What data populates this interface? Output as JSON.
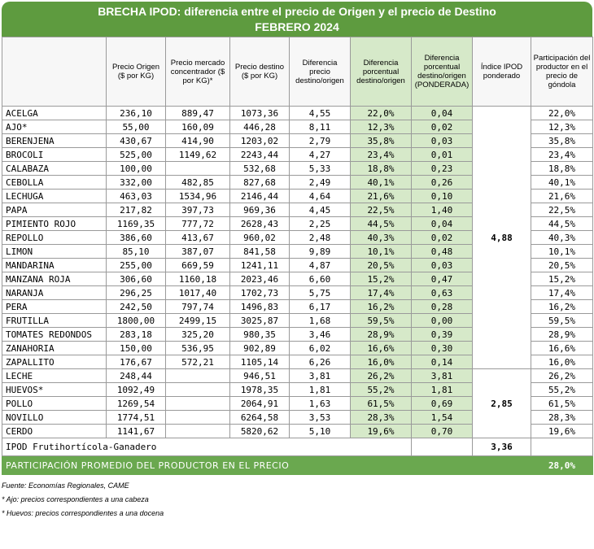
{
  "title": "BRECHA IPOD: diferencia entre el precio de Origen y el precio de Destino",
  "subtitle": "FEBRERO 2024",
  "table": {
    "headers": [
      "Precio Origen ($ por KG)",
      "Precio mercado concentrador ($ por KG)*",
      "Precio destino ($ por KG)",
      "Diferencia precio destino/origen",
      "Diferencia porcentual destino/origen",
      "Diferencia porcentual destino/origen (PONDERADA)",
      "Índice IPOD ponderado",
      "Participación del productor en el precio de góndola"
    ],
    "groups": [
      {
        "ipod": "4,88",
        "rows": [
          [
            "ACELGA",
            "236,10",
            "889,47",
            "1073,36",
            "4,55",
            "22,0%",
            "0,04",
            "22,0%"
          ],
          [
            "AJO*",
            "55,00",
            "160,09",
            "446,28",
            "8,11",
            "12,3%",
            "0,02",
            "12,3%"
          ],
          [
            "BERENJENA",
            "430,67",
            "414,90",
            "1203,02",
            "2,79",
            "35,8%",
            "0,03",
            "35,8%"
          ],
          [
            "BROCOLI",
            "525,00",
            "1149,62",
            "2243,44",
            "4,27",
            "23,4%",
            "0,01",
            "23,4%"
          ],
          [
            "CALABAZA",
            "100,00",
            null,
            "532,68",
            "5,33",
            "18,8%",
            "0,23",
            "18,8%"
          ],
          [
            "CEBOLLA",
            "332,00",
            "482,85",
            "827,68",
            "2,49",
            "40,1%",
            "0,26",
            "40,1%"
          ],
          [
            "LECHUGA",
            "463,03",
            "1534,96",
            "2146,44",
            "4,64",
            "21,6%",
            "0,10",
            "21,6%"
          ],
          [
            "PAPA",
            "217,82",
            "397,73",
            "969,36",
            "4,45",
            "22,5%",
            "1,40",
            "22,5%"
          ],
          [
            "PIMIENTO ROJO",
            "1169,35",
            "777,72",
            "2628,43",
            "2,25",
            "44,5%",
            "0,04",
            "44,5%"
          ],
          [
            "REPOLLO",
            "386,60",
            "413,67",
            "960,02",
            "2,48",
            "40,3%",
            "0,02",
            "40,3%"
          ],
          [
            "LIMON",
            "85,10",
            "387,07",
            "841,58",
            "9,89",
            "10,1%",
            "0,48",
            "10,1%"
          ],
          [
            "MANDARINA",
            "255,00",
            "669,59",
            "1241,11",
            "4,87",
            "20,5%",
            "0,03",
            "20,5%"
          ],
          [
            "MANZANA ROJA",
            "306,60",
            "1160,18",
            "2023,46",
            "6,60",
            "15,2%",
            "0,47",
            "15,2%"
          ],
          [
            "NARANJA",
            "296,25",
            "1017,40",
            "1702,73",
            "5,75",
            "17,4%",
            "0,63",
            "17,4%"
          ],
          [
            "PERA",
            "242,50",
            "797,74",
            "1496,83",
            "6,17",
            "16,2%",
            "0,28",
            "16,2%"
          ],
          [
            "FRUTILLA",
            "1800,00",
            "2499,15",
            "3025,87",
            "1,68",
            "59,5%",
            "0,00",
            "59,5%"
          ],
          [
            "TOMATES REDONDOS",
            "283,18",
            "325,20",
            "980,35",
            "3,46",
            "28,9%",
            "0,39",
            "28,9%"
          ],
          [
            "ZANAHORIA",
            "150,00",
            "536,95",
            "902,89",
            "6,02",
            "16,6%",
            "0,30",
            "16,6%"
          ],
          [
            "ZAPALLITO",
            "176,67",
            "572,21",
            "1105,14",
            "6,26",
            "16,0%",
            "0,14",
            "16,0%"
          ]
        ]
      },
      {
        "ipod": "2,85",
        "rows": [
          [
            "LECHE",
            "248,44",
            null,
            "946,51",
            "3,81",
            "26,2%",
            "3,81",
            "26,2%"
          ],
          [
            "HUEVOS*",
            "1092,49",
            null,
            "1978,35",
            "1,81",
            "55,2%",
            "1,81",
            "55,2%"
          ],
          [
            "POLLO",
            "1269,54",
            null,
            "2064,91",
            "1,63",
            "61,5%",
            "0,69",
            "61,5%"
          ],
          [
            "NOVILLO",
            "1774,51",
            null,
            "6264,58",
            "3,53",
            "28,3%",
            "1,54",
            "28,3%"
          ],
          [
            "CERDO",
            "1141,67",
            null,
            "5820,62",
            "5,10",
            "19,6%",
            "0,70",
            "19,6%"
          ]
        ]
      }
    ],
    "summary": {
      "label": "IPOD Frutihortícola-Ganadero",
      "value": "3,36"
    },
    "footer": {
      "label": "PARTICIPACIÓN PROMEDIO DEL PRODUCTOR EN EL PRECIO",
      "value": "28,0%"
    }
  },
  "notes": [
    "Fuente: Economías Regionales, CAME",
    "* Ajo: precios correspondientes a una cabeza",
    "* Huevos: precios correspondientes a una docena"
  ]
}
